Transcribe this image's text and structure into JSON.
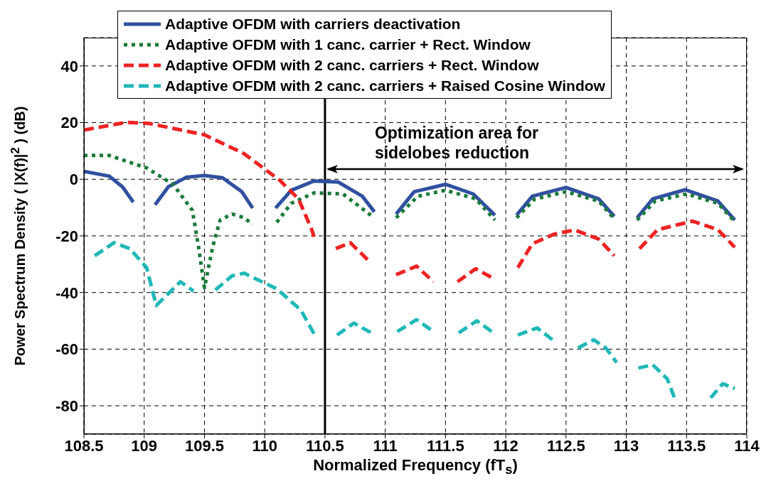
{
  "chart_data": {
    "type": "line",
    "xlabel": "Normalized Frequency (fT$_{s}$)",
    "ylabel": "Power Spectrum Density ( |X(f)|$^{2}$ ) (dB)",
    "xlim": [
      108.5,
      114
    ],
    "xticks": [
      108.5,
      109,
      109.5,
      110,
      110.5,
      111,
      111.5,
      112,
      112.5,
      113,
      113.5,
      114
    ],
    "ylim": [
      -90,
      50
    ],
    "yticks": [
      -80,
      -60,
      -40,
      -20,
      0,
      20,
      40
    ],
    "grid": true,
    "legend": "top",
    "marker": "none",
    "ref_lines": [
      {
        "axis": "x",
        "value": 110.5,
        "color": "#000000",
        "line_style": "solid"
      }
    ],
    "annotations": [
      "Optimization area for\nsidelobes reduction"
    ],
    "series": [
      {
        "name": "Adaptive OFDM with carriers deactivation",
        "color": "#3050a0",
        "line_style": "solid",
        "x": [
          108.5,
          108.71,
          108.82,
          108.91,
          null,
          109.09,
          109.2,
          109.35,
          109.5,
          109.65,
          109.81,
          109.9,
          null,
          110.09,
          110.22,
          110.41,
          110.61,
          110.81,
          110.91,
          null,
          111.09,
          111.24,
          111.5,
          111.73,
          111.91,
          null,
          112.09,
          112.22,
          112.5,
          112.77,
          112.9,
          null,
          113.09,
          113.22,
          113.49,
          113.76,
          113.9
        ],
        "values": [
          2.8,
          1.1,
          -2.7,
          -8.1,
          null,
          -9,
          -2.7,
          0.7,
          1.3,
          0.5,
          -4.4,
          -10.2,
          null,
          -10.2,
          -3.9,
          -0.6,
          -1,
          -6,
          -11.5,
          null,
          -12.3,
          -4.4,
          -1.8,
          -5.2,
          -12.7,
          null,
          -12.7,
          -6,
          -2.9,
          -6.9,
          -13.1,
          null,
          -13.6,
          -6.9,
          -3.7,
          -7.7,
          -14.4
        ]
      },
      {
        "name": "Adaptive OFDM with 1 canc. carrier + Rect. Window",
        "color": "#1a7a3a",
        "line_style": "dotted",
        "x": [
          108.5,
          108.71,
          109.02,
          109.24,
          109.4,
          109.45,
          109.5,
          109.57,
          109.63,
          109.73,
          109.83,
          109.9,
          null,
          110.1,
          110.22,
          110.41,
          110.65,
          110.88,
          null,
          111.09,
          111.27,
          111.5,
          111.75,
          111.91,
          null,
          112.09,
          112.24,
          112.5,
          112.77,
          112.9,
          null,
          113.09,
          113.24,
          113.5,
          113.76,
          113.9
        ],
        "values": [
          8.4,
          8.4,
          4,
          -1.8,
          -11,
          -23.6,
          -38.3,
          -23.6,
          -14.4,
          -12.3,
          -13.6,
          -16,
          null,
          -15.2,
          -8.5,
          -4.8,
          -5.2,
          -12.7,
          null,
          -13.6,
          -6,
          -3.9,
          -6.9,
          -14.4,
          null,
          -13.6,
          -7,
          -4.4,
          -7.7,
          -14,
          null,
          -14.4,
          -7.7,
          -5.2,
          -8.5,
          -15
        ]
      },
      {
        "name": "Adaptive OFDM with 2 canc. carriers + Rect. Window",
        "color": "#ee2222",
        "line_style": "dashed",
        "x": [
          108.5,
          108.85,
          109.04,
          109.5,
          109.83,
          110.12,
          110.28,
          110.39,
          110.41,
          null,
          110.59,
          110.71,
          110.88,
          null,
          111.09,
          111.26,
          111.4,
          null,
          111.6,
          111.75,
          111.91,
          null,
          112.1,
          112.22,
          112.4,
          112.57,
          112.77,
          112.9,
          null,
          113.11,
          113.26,
          113.55,
          113.76,
          113.9
        ],
        "values": [
          17.4,
          20.1,
          19.7,
          15.7,
          9,
          -0.2,
          -6.9,
          -17.8,
          -20.3,
          null,
          -24.5,
          -22.4,
          -29.5,
          null,
          -33.7,
          -30.7,
          -36.2,
          null,
          -36.2,
          -31.6,
          -35.3,
          null,
          -31.2,
          -22.8,
          -19.4,
          -17.9,
          -21.1,
          -27,
          null,
          -24.5,
          -17.8,
          -14.8,
          -17.8,
          -24
        ]
      },
      {
        "name": "Adaptive OFDM with 2 canc. carriers + Raised Cosine Window",
        "color": "#20b8b8",
        "line_style": "dashed",
        "x": [
          108.59,
          108.75,
          108.88,
          109.02,
          109.1,
          109.3,
          109.41,
          null,
          109.59,
          109.73,
          109.83,
          110.1,
          110.3,
          110.41,
          null,
          110.6,
          110.74,
          110.9,
          null,
          111.1,
          111.26,
          111.4,
          null,
          111.61,
          111.76,
          111.91,
          null,
          112.1,
          112.26,
          112.4,
          null,
          112.6,
          112.73,
          112.83,
          112.92,
          null,
          113.1,
          113.22,
          113.34,
          113.4,
          null,
          113.7,
          113.8,
          113.9
        ],
        "values": [
          -27,
          -22.4,
          -24.5,
          -31.2,
          -44.6,
          -36.2,
          -39.5,
          null,
          -39.1,
          -34.1,
          -33.2,
          -38.7,
          -46.2,
          -54.6,
          null,
          -55,
          -50.8,
          -54.6,
          null,
          -53.8,
          -49.6,
          -53.8,
          null,
          -54.2,
          -50,
          -54.6,
          null,
          -55,
          -52.5,
          -57.1,
          null,
          -59.6,
          -56.7,
          -59.6,
          -64.7,
          null,
          -66.7,
          -65.5,
          -70.5,
          -77.2,
          null,
          -77.2,
          -72.2,
          -73.9
        ]
      }
    ]
  }
}
